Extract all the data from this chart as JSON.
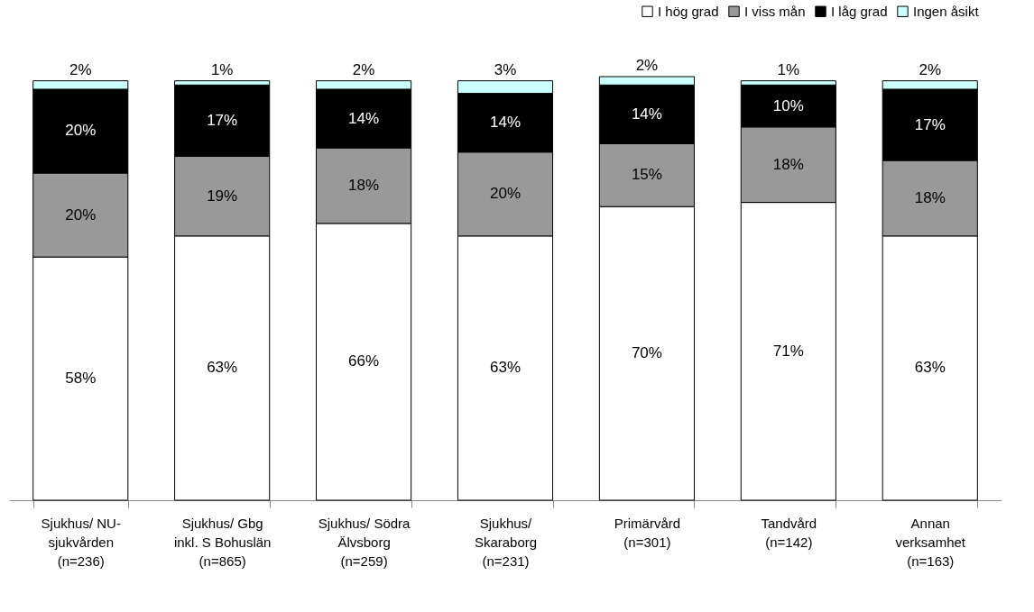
{
  "chart_data": {
    "type": "bar",
    "stacked": true,
    "legend": "top right",
    "grid": false,
    "categories": [
      "Sjukhus/ NU-\nsjukvården\n(n=236)",
      "Sjukhus/ Gbg\ninkl. S Bohuslän\n(n=865)",
      "Sjukhus/ Södra\nÄlvsborg\n(n=259)",
      "Sjukhus/\nSkaraborg\n(n=231)",
      "Primärvård\n(n=301)",
      "Tandvård\n(n=142)",
      "Annan\nverksamhet\n(n=163)"
    ],
    "series": [
      {
        "name": "I hög grad",
        "color": "#ffffff",
        "values": [
          58,
          63,
          66,
          63,
          70,
          71,
          63
        ],
        "value_labels": [
          "58%",
          "63%",
          "66%",
          "63%",
          "70%",
          "71%",
          "63%"
        ]
      },
      {
        "name": "I viss mån",
        "color": "#999999",
        "values": [
          20,
          19,
          18,
          20,
          15,
          18,
          18
        ],
        "value_labels": [
          "20%",
          "19%",
          "18%",
          "20%",
          "15%",
          "18%",
          "18%"
        ]
      },
      {
        "name": "I låg grad",
        "color": "#000000",
        "values": [
          20,
          17,
          14,
          14,
          14,
          10,
          17
        ],
        "value_labels": [
          "20%",
          "17%",
          "14%",
          "14%",
          "14%",
          "10%",
          "17%"
        ]
      },
      {
        "name": "Ingen åsikt",
        "color": "#ccffff",
        "values": [
          2,
          1,
          2,
          3,
          2,
          1,
          2
        ],
        "value_labels": [
          "2%",
          "1%",
          "2%",
          "3%",
          "2%",
          "1%",
          "2%"
        ]
      }
    ]
  }
}
